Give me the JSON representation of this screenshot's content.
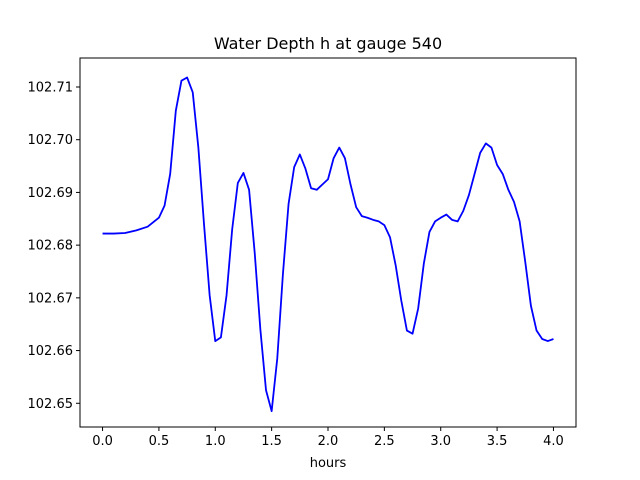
{
  "chart_data": {
    "type": "line",
    "title": "Water Depth h at gauge 540",
    "xlabel": "hours",
    "ylabel": "",
    "xlim": [
      -0.2,
      4.2
    ],
    "ylim": [
      102.6455,
      102.7155
    ],
    "xticks": [
      0.0,
      0.5,
      1.0,
      1.5,
      2.0,
      2.5,
      3.0,
      3.5,
      4.0
    ],
    "xtick_labels": [
      "0.0",
      "0.5",
      "1.0",
      "1.5",
      "2.0",
      "2.5",
      "3.0",
      "3.5",
      "4.0"
    ],
    "yticks": [
      102.65,
      102.66,
      102.67,
      102.68,
      102.69,
      102.7,
      102.71
    ],
    "ytick_labels": [
      "102.65",
      "102.66",
      "102.67",
      "102.68",
      "102.69",
      "102.70",
      "102.71"
    ],
    "grid": false,
    "series": [
      {
        "color": "#0000ff",
        "x": [
          0.0,
          0.1,
          0.2,
          0.3,
          0.4,
          0.5,
          0.55,
          0.6,
          0.65,
          0.7,
          0.75,
          0.8,
          0.85,
          0.9,
          0.95,
          1.0,
          1.05,
          1.1,
          1.15,
          1.2,
          1.25,
          1.3,
          1.35,
          1.4,
          1.45,
          1.5,
          1.55,
          1.6,
          1.65,
          1.7,
          1.75,
          1.8,
          1.85,
          1.9,
          1.95,
          2.0,
          2.05,
          2.1,
          2.15,
          2.2,
          2.25,
          2.3,
          2.35,
          2.4,
          2.45,
          2.5,
          2.55,
          2.6,
          2.65,
          2.7,
          2.75,
          2.8,
          2.85,
          2.9,
          2.95,
          3.0,
          3.05,
          3.1,
          3.15,
          3.2,
          3.25,
          3.3,
          3.35,
          3.4,
          3.45,
          3.5,
          3.55,
          3.6,
          3.65,
          3.7,
          3.75,
          3.8,
          3.85,
          3.9,
          3.95,
          4.0
        ],
        "y": [
          102.6822,
          102.6822,
          102.6823,
          102.6828,
          102.6835,
          102.6852,
          102.6875,
          102.6935,
          102.7055,
          102.7112,
          102.7118,
          102.709,
          102.6985,
          102.684,
          102.6705,
          102.6618,
          102.6625,
          102.6705,
          102.683,
          102.6918,
          102.6937,
          102.6905,
          102.6785,
          102.664,
          102.6525,
          102.6485,
          102.6585,
          102.6745,
          102.6878,
          102.6948,
          102.6972,
          102.6945,
          102.6908,
          102.6905,
          102.6915,
          102.6925,
          102.6965,
          102.6985,
          102.6965,
          102.6915,
          102.6872,
          102.6855,
          102.6852,
          102.6848,
          102.6845,
          102.6838,
          102.6815,
          102.6762,
          102.6695,
          102.6638,
          102.6632,
          102.668,
          102.6765,
          102.6825,
          102.6845,
          102.6852,
          102.6858,
          102.6848,
          102.6845,
          102.6865,
          102.6895,
          102.6935,
          102.6975,
          102.6993,
          102.6985,
          102.6952,
          102.6935,
          102.6905,
          102.6882,
          102.6845,
          102.6768,
          102.6685,
          102.6638,
          102.6622,
          102.6618,
          102.6622
        ]
      }
    ]
  }
}
